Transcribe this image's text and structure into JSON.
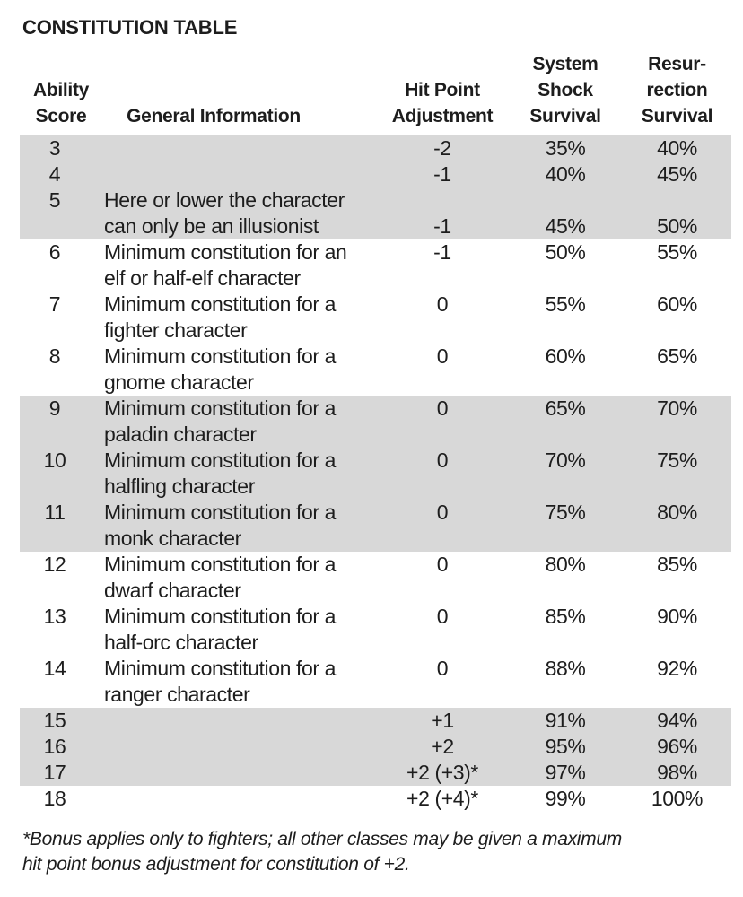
{
  "title": "CONSTITUTION TABLE",
  "colors": {
    "background": "#ffffff",
    "text": "#1d1d1d",
    "shaded_band": "#d8d8d8"
  },
  "table": {
    "header": {
      "score": [
        "Ability",
        "Score"
      ],
      "info": [
        "General Information"
      ],
      "adj": [
        "Hit Point",
        "Adjustment"
      ],
      "shock": [
        "System",
        "Shock",
        "Survival"
      ],
      "res": [
        "Resur-",
        "rection",
        "Survival"
      ]
    },
    "rows": [
      {
        "score": "3",
        "shaded": true,
        "lines": [
          {
            "info": "",
            "adj": "-2",
            "shock": "35%",
            "res": "40%"
          }
        ]
      },
      {
        "score": "4",
        "shaded": true,
        "lines": [
          {
            "info": "",
            "adj": "-1",
            "shock": "40%",
            "res": "45%"
          }
        ]
      },
      {
        "score": "5",
        "shaded": true,
        "lines": [
          {
            "info": "Here or lower the character"
          },
          {
            "info": "can only be an illusionist",
            "adj": "-1",
            "shock": "45%",
            "res": "50%"
          }
        ]
      },
      {
        "score": "6",
        "shaded": false,
        "lines": [
          {
            "info": "Minimum constitution for an",
            "adj": "-1",
            "shock": "50%",
            "res": "55%"
          },
          {
            "info": "elf or half-elf character"
          }
        ]
      },
      {
        "score": "7",
        "shaded": false,
        "lines": [
          {
            "info": "Minimum constitution for a",
            "adj": "0",
            "shock": "55%",
            "res": "60%"
          },
          {
            "info": "fighter character"
          }
        ]
      },
      {
        "score": "8",
        "shaded": false,
        "lines": [
          {
            "info": "Minimum constitution for a",
            "adj": "0",
            "shock": "60%",
            "res": "65%"
          },
          {
            "info": "gnome character"
          }
        ]
      },
      {
        "score": "9",
        "shaded": true,
        "lines": [
          {
            "info": "Minimum constitution for a",
            "adj": "0",
            "shock": "65%",
            "res": "70%"
          },
          {
            "info": "paladin character"
          }
        ]
      },
      {
        "score": "10",
        "shaded": true,
        "lines": [
          {
            "info": "Minimum constitution for a",
            "adj": "0",
            "shock": "70%",
            "res": "75%"
          },
          {
            "info": "halfling character"
          }
        ]
      },
      {
        "score": "11",
        "shaded": true,
        "lines": [
          {
            "info": "Minimum constitution for a",
            "adj": "0",
            "shock": "75%",
            "res": "80%"
          },
          {
            "info": "monk character"
          }
        ]
      },
      {
        "score": "12",
        "shaded": false,
        "lines": [
          {
            "info": "Minimum constitution for a",
            "adj": "0",
            "shock": "80%",
            "res": "85%"
          },
          {
            "info": "dwarf character"
          }
        ]
      },
      {
        "score": "13",
        "shaded": false,
        "lines": [
          {
            "info": "Minimum constitution for a",
            "adj": "0",
            "shock": "85%",
            "res": "90%"
          },
          {
            "info": "half-orc character"
          }
        ]
      },
      {
        "score": "14",
        "shaded": false,
        "lines": [
          {
            "info": "Minimum constitution for a",
            "adj": "0",
            "shock": "88%",
            "res": "92%"
          },
          {
            "info": "ranger character"
          }
        ]
      },
      {
        "score": "15",
        "shaded": true,
        "lines": [
          {
            "info": "",
            "adj": "+1",
            "shock": "91%",
            "res": "94%"
          }
        ]
      },
      {
        "score": "16",
        "shaded": true,
        "lines": [
          {
            "info": "",
            "adj": "+2",
            "shock": "95%",
            "res": "96%"
          }
        ]
      },
      {
        "score": "17",
        "shaded": true,
        "lines": [
          {
            "info": "",
            "adj": "+2 (+3)*",
            "shock": "97%",
            "res": "98%"
          }
        ]
      },
      {
        "score": "18",
        "shaded": false,
        "lines": [
          {
            "info": "",
            "adj": "+2 (+4)*",
            "shock": "99%",
            "res": "100%"
          }
        ]
      }
    ]
  },
  "footnote": {
    "lines": [
      "*Bonus applies only to fighters; all other classes may be given a maximum",
      "hit point bonus adjustment for constitution of +2."
    ]
  }
}
